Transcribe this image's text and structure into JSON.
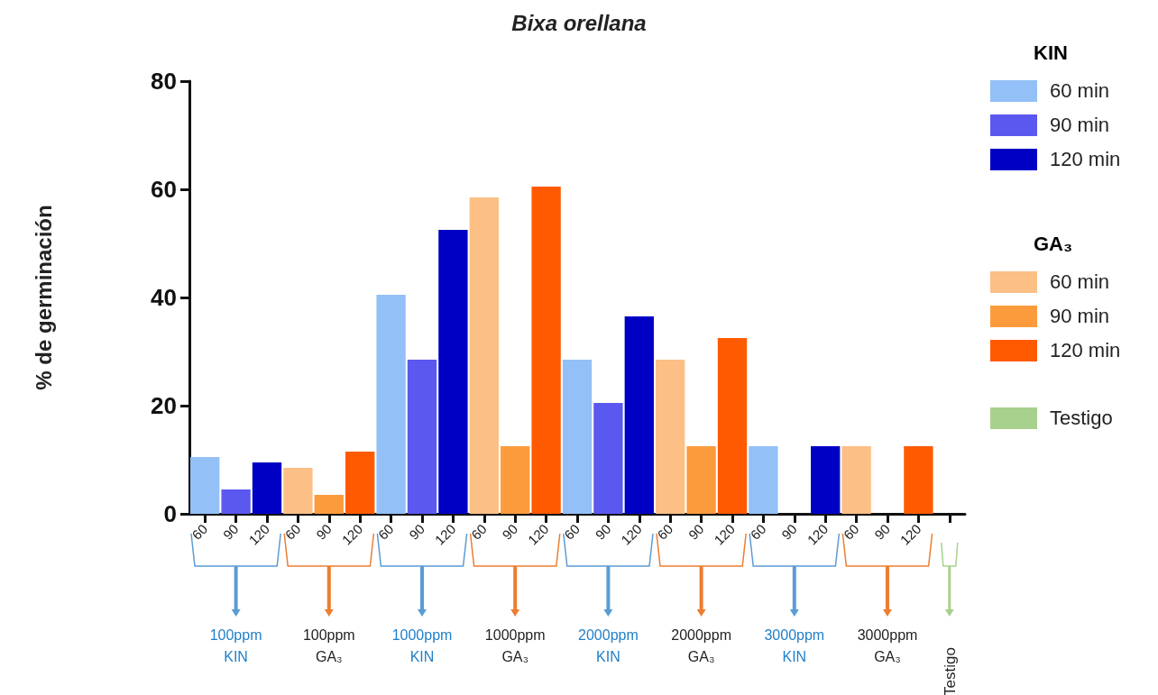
{
  "chart_data": {
    "type": "bar",
    "title": "Bixa orellana",
    "ylabel": "% de germinación",
    "categories": [
      "60",
      "90",
      "120",
      "60",
      "90",
      "120",
      "60",
      "90",
      "120",
      "60",
      "90",
      "120",
      "60",
      "90",
      "120",
      "60",
      "90",
      "120",
      "60",
      "90",
      "120",
      "60",
      "90",
      "120",
      null
    ],
    "series": [
      {
        "name": "60 min",
        "color": "#93c0f7",
        "values": [
          10.5,
          null,
          null,
          null,
          null,
          null,
          40.5,
          null,
          null,
          null,
          null,
          null,
          28.5,
          null,
          null,
          null,
          null,
          null,
          12.5,
          null,
          null,
          null,
          null,
          null,
          null
        ]
      },
      {
        "name": "90 min",
        "color": "#5b58f0",
        "values": [
          null,
          4.5,
          null,
          null,
          null,
          null,
          null,
          28.5,
          null,
          null,
          null,
          null,
          null,
          20.5,
          null,
          null,
          null,
          null,
          null,
          0,
          null,
          null,
          null,
          null,
          null
        ]
      },
      {
        "name": "120 min",
        "color": "#0000c4",
        "values": [
          null,
          null,
          9.5,
          null,
          null,
          null,
          null,
          null,
          52.5,
          null,
          null,
          null,
          null,
          null,
          36.5,
          null,
          null,
          null,
          null,
          null,
          12.5,
          null,
          null,
          null,
          null
        ]
      },
      {
        "name": "60 min",
        "color": "#fcbf85",
        "values": [
          null,
          null,
          null,
          8.5,
          null,
          null,
          null,
          null,
          null,
          58.5,
          null,
          null,
          null,
          null,
          null,
          28.5,
          null,
          null,
          null,
          null,
          null,
          12.5,
          null,
          null,
          null
        ]
      },
      {
        "name": "90 min",
        "color": "#fc9b3c",
        "values": [
          null,
          null,
          null,
          null,
          3.5,
          null,
          null,
          null,
          null,
          null,
          12.5,
          null,
          null,
          null,
          null,
          null,
          12.5,
          null,
          null,
          null,
          null,
          null,
          0,
          null,
          null
        ]
      },
      {
        "name": "120 min",
        "color": "#ff5a00",
        "values": [
          null,
          null,
          null,
          null,
          null,
          11.5,
          null,
          null,
          null,
          null,
          null,
          60.5,
          null,
          null,
          null,
          null,
          null,
          32.5,
          null,
          null,
          null,
          null,
          null,
          12.5,
          null
        ]
      },
      {
        "name": "Testigo",
        "color": "#a9d18e",
        "values": [
          null,
          null,
          null,
          null,
          null,
          null,
          null,
          null,
          null,
          null,
          null,
          null,
          null,
          null,
          null,
          null,
          null,
          null,
          null,
          null,
          null,
          null,
          null,
          null,
          0
        ]
      }
    ],
    "ylim": [
      0,
      80
    ],
    "yticks": [
      0,
      20,
      40,
      60,
      80
    ],
    "grid": false,
    "legend": "right",
    "annotations": [
      "KIN",
      "GA₃",
      "100ppm KIN",
      "100ppm GA₃",
      "1000ppm KIN",
      "1000ppm GA₃",
      "2000ppm KIN",
      "2000ppm GA₃",
      "3000ppm KIN",
      "3000ppm GA₃",
      "Testigo"
    ]
  }
}
